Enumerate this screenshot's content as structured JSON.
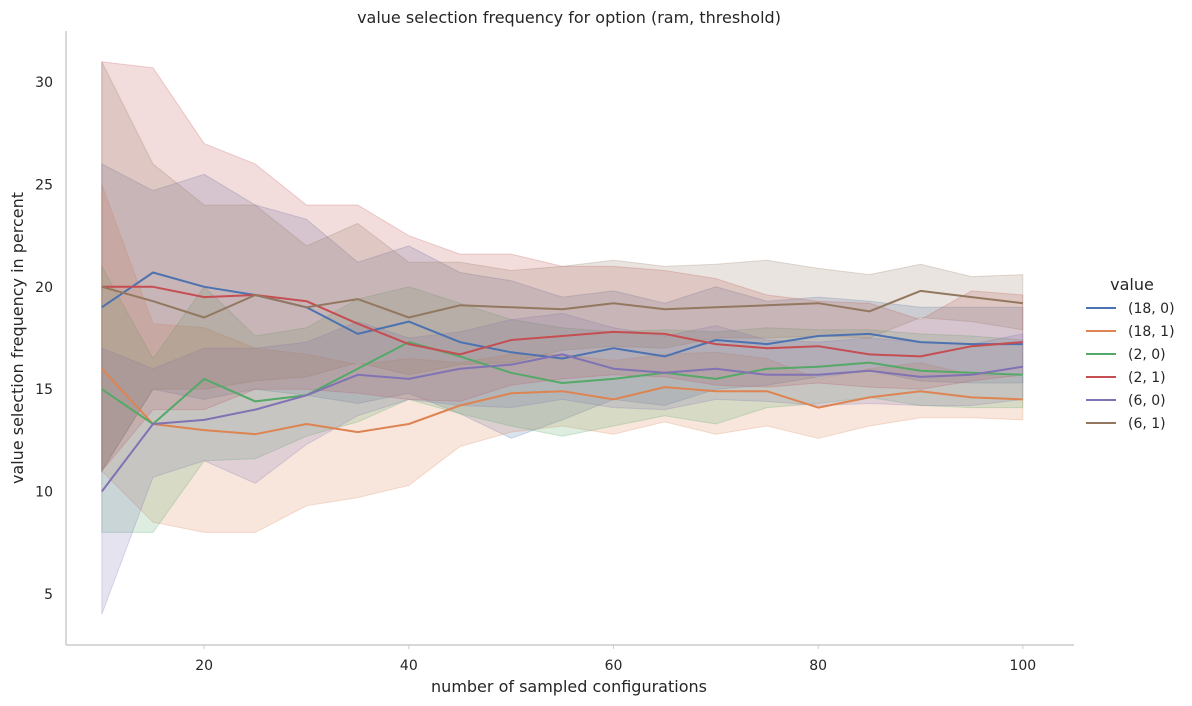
{
  "chart_data": {
    "type": "line",
    "title": "value selection frequency for option (ram, threshold)",
    "xlabel": "number of sampled configurations",
    "ylabel": "value selection frequency in percent",
    "xlim": [
      6.5,
      105
    ],
    "ylim": [
      2.5,
      32.5
    ],
    "xticks": [
      20,
      40,
      60,
      80,
      100
    ],
    "yticks": [
      5,
      10,
      15,
      20,
      25,
      30
    ],
    "grid": false,
    "legend_title": "value",
    "legend_position": "right",
    "x": [
      10,
      15,
      20,
      25,
      30,
      35,
      40,
      45,
      50,
      55,
      60,
      65,
      70,
      75,
      80,
      85,
      90,
      95,
      100
    ],
    "series": [
      {
        "name": "(18, 0)",
        "color": "#4c72b0",
        "values": [
          19,
          20.7,
          20,
          19.6,
          19,
          17.7,
          18.3,
          17.3,
          16.8,
          16.5,
          17,
          16.6,
          17.4,
          17.2,
          17.6,
          17.7,
          17.3,
          17.2,
          17.2
        ],
        "ci_low": [
          11,
          15,
          14.5,
          15,
          14.7,
          14.3,
          14.8,
          13.8,
          12.6,
          13.5,
          14.5,
          14.2,
          15,
          15.2,
          15.6,
          15.9,
          15.4,
          15.3,
          15.3
        ],
        "ci_high": [
          26,
          24.7,
          25.5,
          24,
          23.3,
          21.2,
          22,
          20.7,
          20.3,
          19.5,
          19.8,
          19.2,
          20,
          19.3,
          19.5,
          19.3,
          19,
          19,
          19
        ]
      },
      {
        "name": "(18, 1)",
        "color": "#dd8452",
        "values": [
          16,
          13.3,
          13,
          12.8,
          13.3,
          12.9,
          13.3,
          14.2,
          14.8,
          14.9,
          14.5,
          15.1,
          14.9,
          14.9,
          14.1,
          14.6,
          14.9,
          14.6,
          14.5
        ],
        "ci_low": [
          11,
          8.5,
          8,
          8,
          9.3,
          9.7,
          10.3,
          12.2,
          12.9,
          13.2,
          12.8,
          13.4,
          12.8,
          13.2,
          12.6,
          13.2,
          13.6,
          13.6,
          13.5
        ],
        "ci_high": [
          25,
          18.2,
          18,
          17,
          16.7,
          16.2,
          16.5,
          16.3,
          16.7,
          16.7,
          16.4,
          16.7,
          16.8,
          16.5,
          15.5,
          16,
          16.3,
          15.7,
          15.6
        ]
      },
      {
        "name": "(2, 0)",
        "color": "#55a868",
        "values": [
          15,
          13.3,
          15.5,
          14.4,
          14.7,
          16,
          17.3,
          16.6,
          15.8,
          15.3,
          15.5,
          15.8,
          15.5,
          16,
          16.1,
          16.3,
          15.9,
          15.8,
          15.7
        ],
        "ci_low": [
          8,
          8,
          11.5,
          11.6,
          12.7,
          13.4,
          14.5,
          13.8,
          13.2,
          12.7,
          13.2,
          13.7,
          13.3,
          14.1,
          14.3,
          14.6,
          14.2,
          14.1,
          14.1
        ],
        "ci_high": [
          21,
          16.5,
          20,
          17.6,
          18,
          19.4,
          20,
          19.2,
          18.4,
          18,
          17.8,
          17.9,
          17.8,
          18,
          17.9,
          17.9,
          17.7,
          17.6,
          17.4
        ]
      },
      {
        "name": "(2, 1)",
        "color": "#c44e52",
        "values": [
          20,
          20,
          19.5,
          19.6,
          19.3,
          18.2,
          17.2,
          16.7,
          17.4,
          17.6,
          17.8,
          17.7,
          17.2,
          17,
          17.1,
          16.7,
          16.6,
          17.1,
          17.3
        ],
        "ci_low": [
          11,
          14,
          14,
          15,
          15,
          14.8,
          14.5,
          14.4,
          15.2,
          15.5,
          15.7,
          15.6,
          15.2,
          15.1,
          15.3,
          15.1,
          15,
          15.4,
          15.7
        ],
        "ci_high": [
          31,
          30.7,
          27,
          26,
          24,
          24,
          22.5,
          21.6,
          21.6,
          21,
          21,
          20.8,
          20.4,
          19.6,
          19.3,
          19.2,
          18.4,
          19.8,
          19.6
        ]
      },
      {
        "name": "(6, 0)",
        "color": "#8172b3",
        "values": [
          10,
          13.3,
          13.5,
          14,
          14.7,
          15.7,
          15.5,
          16,
          16.2,
          16.7,
          16,
          15.8,
          16,
          15.7,
          15.7,
          15.9,
          15.6,
          15.7,
          16.1
        ],
        "ci_low": [
          4,
          10.7,
          11.5,
          10.4,
          12.3,
          13.7,
          14.5,
          14.2,
          14.1,
          14.5,
          14.1,
          14,
          14.5,
          14.4,
          14.2,
          14.3,
          14.2,
          14.2,
          14.5
        ],
        "ci_high": [
          17,
          16,
          17,
          17,
          17.3,
          18.3,
          17.5,
          17.8,
          18.4,
          18.7,
          18,
          17.6,
          18.1,
          17.4,
          17.3,
          17.5,
          17.3,
          17.2,
          17.7
        ]
      },
      {
        "name": "(6, 1)",
        "color": "#937860",
        "values": [
          20,
          19.3,
          18.5,
          19.6,
          19,
          19.4,
          18.5,
          19.1,
          19,
          18.9,
          19.2,
          18.9,
          19,
          19.1,
          19.2,
          18.8,
          19.8,
          19.5,
          19.2
        ],
        "ci_low": [
          11,
          15,
          15,
          15.4,
          15.6,
          16.3,
          15.7,
          16.2,
          16.3,
          16.9,
          17.1,
          17,
          17.5,
          17.5,
          17.6,
          17.5,
          18.5,
          18.3,
          17.9
        ],
        "ci_high": [
          31,
          26,
          24,
          24,
          22,
          23.1,
          21.2,
          21.2,
          20.8,
          21,
          21.3,
          21,
          21.1,
          21.3,
          20.9,
          20.6,
          21.1,
          20.5,
          20.6
        ]
      }
    ]
  }
}
